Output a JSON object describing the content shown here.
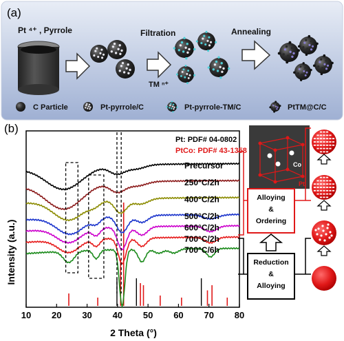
{
  "panel_a": {
    "label": "(a)",
    "precursor_label": "Pt ⁴⁺ , Pyrrole",
    "step1_label": "Filtration",
    "tm_label": "TM ⁿ⁺",
    "step2_label": "Annealing",
    "legend": [
      "C Particle",
      "Pt-pyrrole/C",
      "Pt-pyrrole-TM/C",
      "PtTM@C/C"
    ],
    "colors": {
      "background_top": "#dfe6f2",
      "background_bottom": "#9fb0d3",
      "particle": "#2b2b2b",
      "pt_dot": "#e8e8f0",
      "tm_dot": "#4fd0d8",
      "alloy_dot": "#8a7fd0"
    }
  },
  "panel_b": {
    "label": "(b)",
    "ref_pt": "Pt: PDF# 04-0802",
    "ref_ptco": "PtCo: PDF# 43-1358",
    "crystal_labels": {
      "pt": "Pt",
      "co": "Co"
    },
    "mechanism_upper": [
      "Alloying",
      "&",
      "Ordering"
    ],
    "mechanism_lower": [
      "Reduction",
      "&",
      "Alloying"
    ],
    "colors": {
      "ordering_box": "#e02020",
      "reduction_box": "#000000",
      "sphere": "#e01818"
    }
  },
  "chart_data": {
    "type": "line",
    "xlabel": "2 Theta (°)",
    "ylabel": "Intensity (a.u.)",
    "xlim": [
      10,
      80
    ],
    "xticks": [
      10,
      20,
      30,
      40,
      50,
      60,
      70,
      80
    ],
    "series": [
      {
        "name": "Precursor",
        "color": "#000000",
        "offset": 0.0,
        "peaks": [
          [
            22.5,
            0.16,
            6
          ],
          [
            39.8,
            0.06,
            2.5
          ],
          [
            46.0,
            0.03,
            3
          ]
        ]
      },
      {
        "name": "250°C/2h",
        "color": "#8b1a1a",
        "offset": 0.12,
        "peaks": [
          [
            22.5,
            0.18,
            6
          ],
          [
            40.0,
            0.07,
            2.5
          ],
          [
            46.5,
            0.03,
            3
          ]
        ]
      },
      {
        "name": "400°C/2h",
        "color": "#8b8b00",
        "offset": 0.24,
        "peaks": [
          [
            24.0,
            0.14,
            5
          ],
          [
            32.5,
            0.03,
            2
          ],
          [
            41.0,
            0.1,
            2
          ],
          [
            47.5,
            0.04,
            2.5
          ]
        ]
      },
      {
        "name": "500°C/2h",
        "color": "#1a33cc",
        "offset": 0.36,
        "peaks": [
          [
            24.5,
            0.12,
            4.5
          ],
          [
            33.0,
            0.04,
            1.5
          ],
          [
            41.5,
            0.12,
            1.8
          ],
          [
            48.0,
            0.05,
            2
          ],
          [
            70.5,
            0.03,
            2.5
          ]
        ]
      },
      {
        "name": "600°C/2h",
        "color": "#cc00cc",
        "offset": 0.44,
        "peaks": [
          [
            24.0,
            0.1,
            4
          ],
          [
            33.0,
            0.05,
            1.3
          ],
          [
            41.5,
            0.16,
            1.5
          ],
          [
            48.0,
            0.06,
            1.8
          ],
          [
            70.5,
            0.04,
            2
          ]
        ]
      },
      {
        "name": "700°C/2h",
        "color": "#e61a1a",
        "offset": 0.52,
        "peaks": [
          [
            24.0,
            0.09,
            3.5
          ],
          [
            33.0,
            0.05,
            1.2
          ],
          [
            41.5,
            0.18,
            1.3
          ],
          [
            48.0,
            0.06,
            1.5
          ],
          [
            70.5,
            0.04,
            1.8
          ]
        ]
      },
      {
        "name": "700°C/6h",
        "color": "#1a8a1a",
        "offset": 0.6,
        "peaks": [
          [
            24.0,
            0.08,
            1.8
          ],
          [
            33.0,
            0.06,
            1.0
          ],
          [
            41.5,
            0.4,
            0.9
          ],
          [
            48.0,
            0.09,
            1.2
          ],
          [
            53.5,
            0.03,
            1.5
          ],
          [
            58.5,
            0.03,
            1.5
          ],
          [
            70.5,
            0.06,
            1.3
          ]
        ]
      }
    ],
    "reference_pt": {
      "color": "#000000",
      "positions": [
        39.8,
        46.2,
        67.5,
        81.3
      ]
    },
    "reference_ptco": {
      "color": "#e01818",
      "positions": [
        24.0,
        33.5,
        41.0,
        42.0,
        47.5,
        48.5,
        54.0,
        61.0,
        69.5,
        71.0,
        76.0
      ],
      "heights": [
        0.12,
        0.08,
        0.45,
        1.0,
        0.22,
        0.2,
        0.1,
        0.08,
        0.15,
        0.2,
        0.08
      ]
    },
    "highlight_regions": [
      [
        23.0,
        27.0
      ],
      [
        30.5,
        35.5
      ],
      [
        39.8,
        41.2
      ]
    ]
  }
}
